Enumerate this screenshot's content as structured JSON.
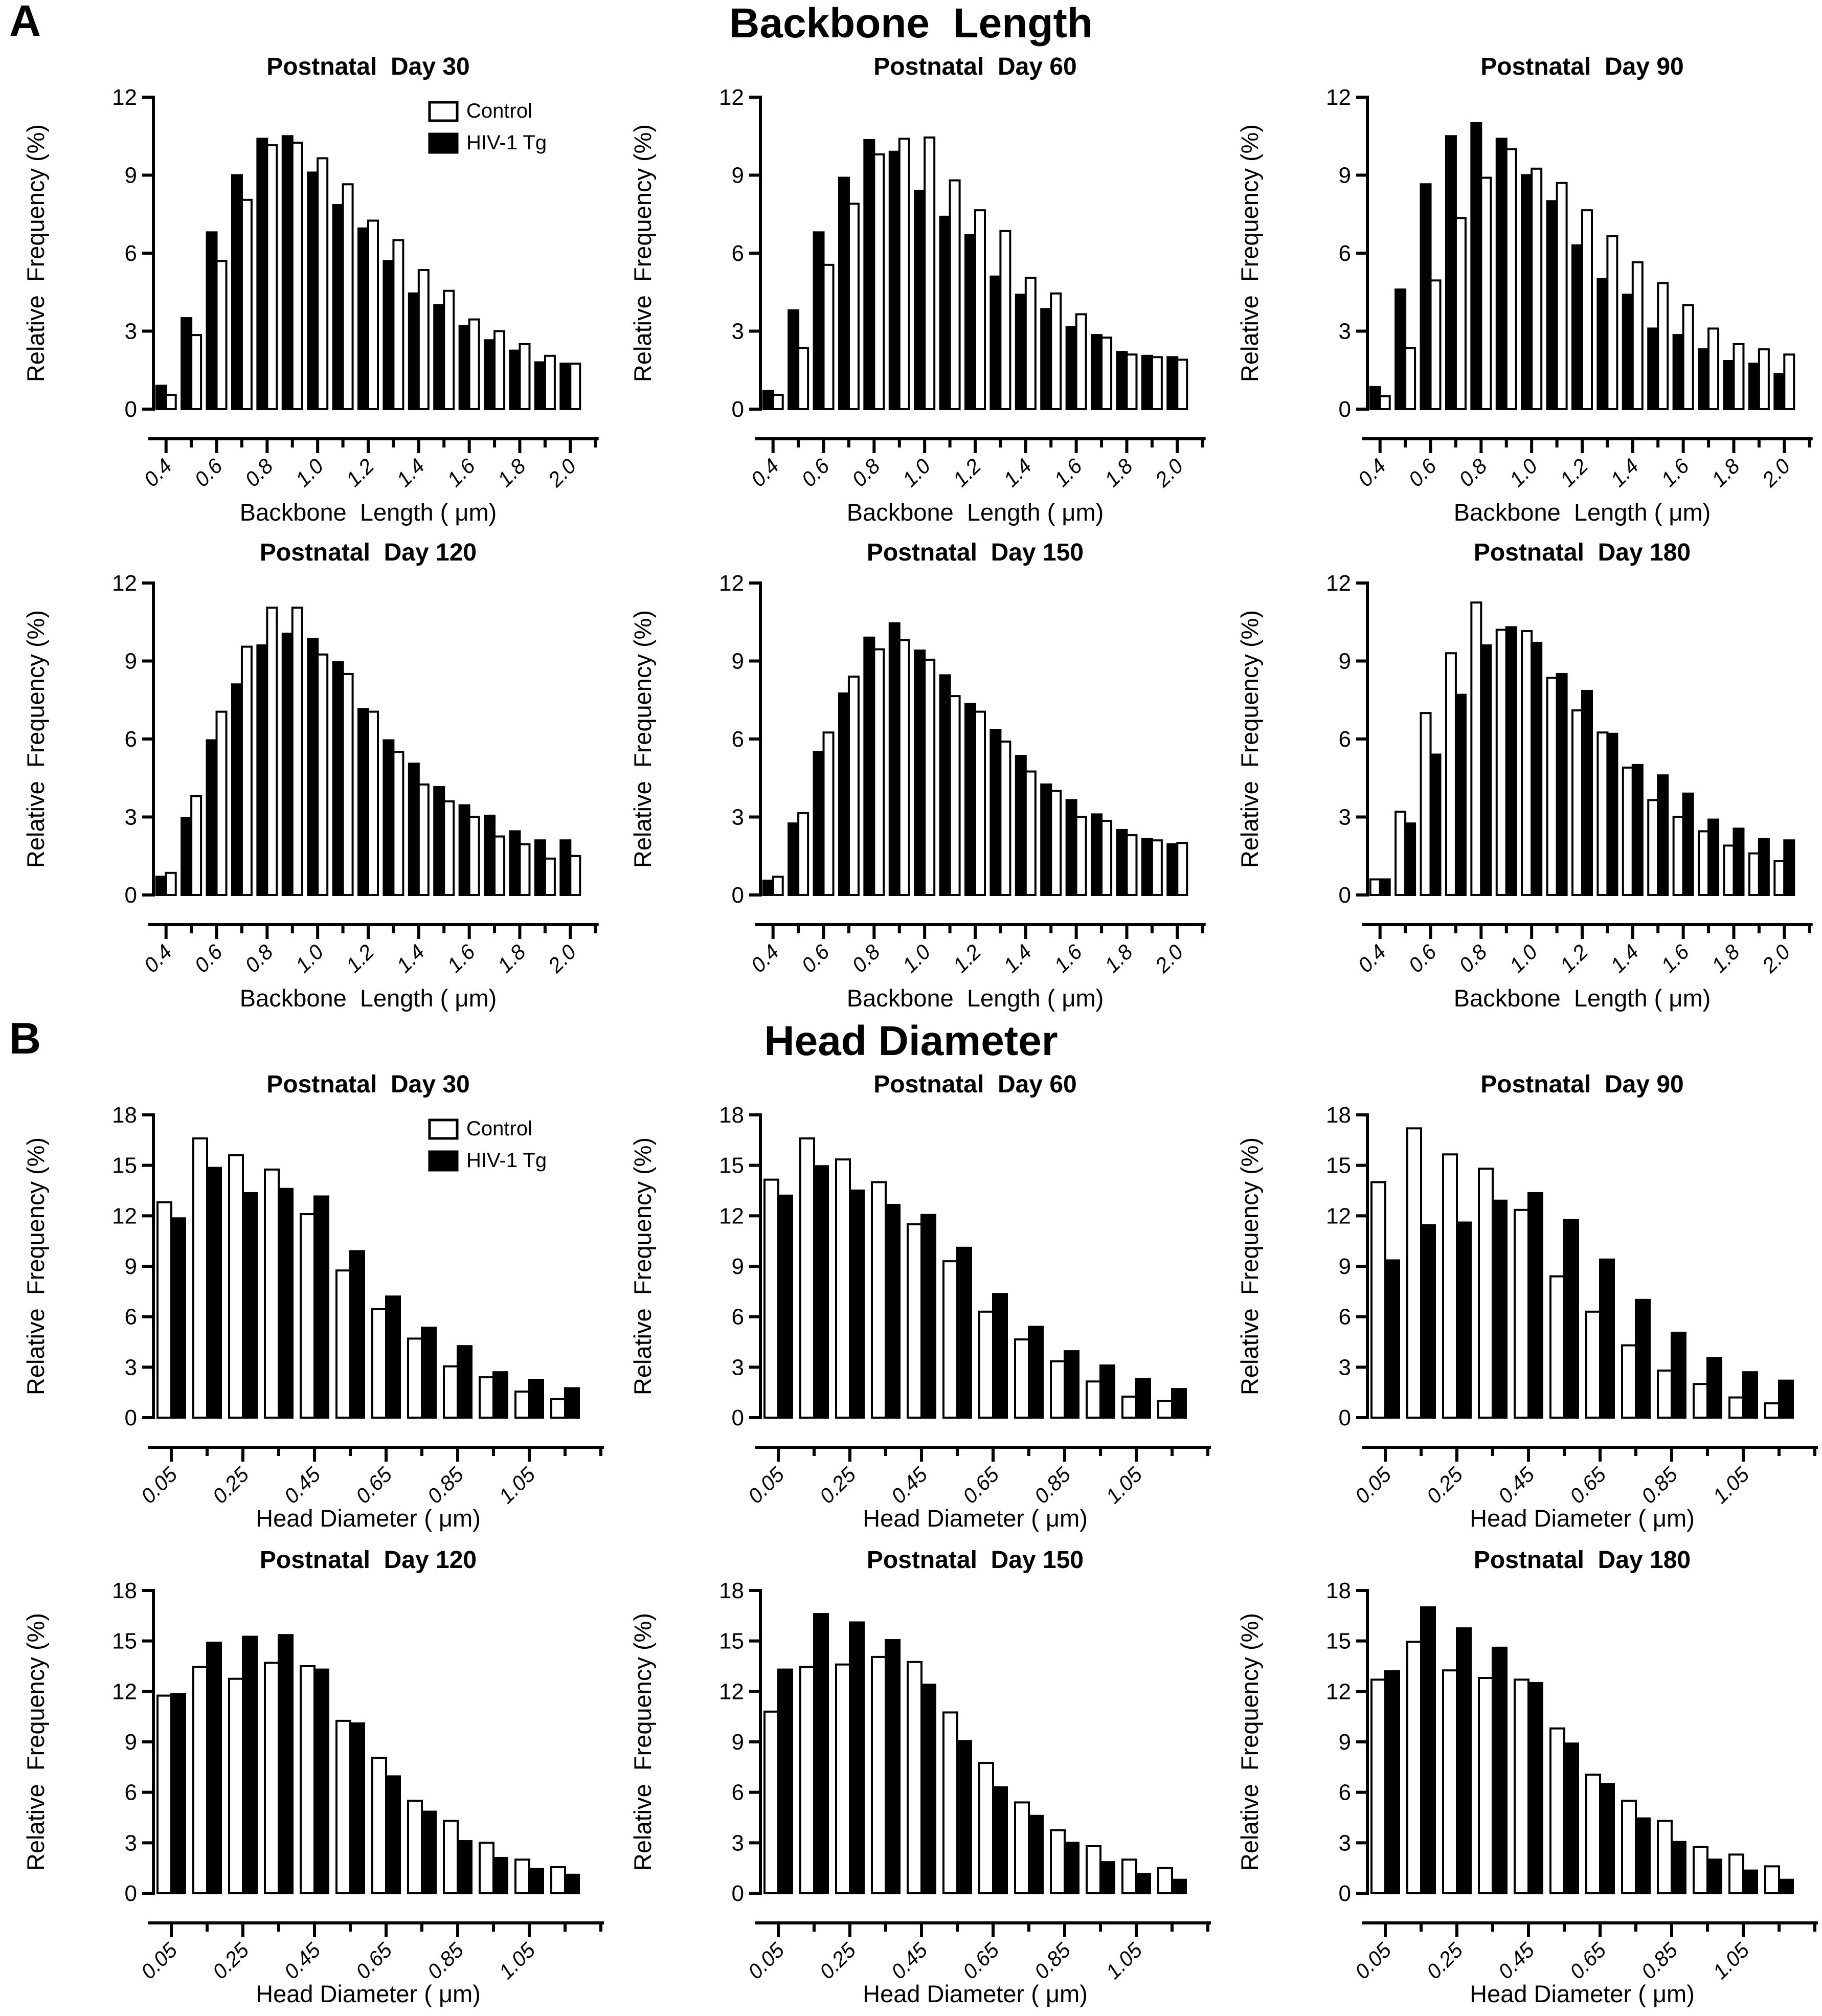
{
  "chart_data": {
    "figure_kind": "paired-bar-histogram-figure",
    "panels": [
      {
        "type": "bar",
        "label": "A",
        "title": "Backbone  Length",
        "ylabel": "Relative  Frequency (%)",
        "xlabel": "Backbone  Length ( μm)",
        "ylim": [
          0,
          12
        ],
        "yticks": [
          0,
          3,
          6,
          9,
          12
        ],
        "bins": {
          "start": 0.4,
          "step": 0.1,
          "count": 17
        },
        "xtick_labels": [
          "0.4",
          "0.6",
          "0.8",
          "1.0",
          "1.2",
          "1.4",
          "1.6",
          "1.8",
          "2.0"
        ],
        "legend": {
          "items": [
            {
              "label": "Control",
              "fill": "#ffffff"
            },
            {
              "label": "HIV-1 Tg",
              "fill": "#000000"
            }
          ]
        },
        "subplots": [
          {
            "title": "Postnatal  Day 30",
            "show_legend": true,
            "series": [
              {
                "name": "HIV-1 Tg",
                "fill": "#000000",
                "values": [
                  0.9,
                  3.5,
                  6.8,
                  9.0,
                  10.4,
                  10.5,
                  9.1,
                  7.85,
                  6.95,
                  5.7,
                  4.45,
                  4.0,
                  3.2,
                  2.65,
                  2.25,
                  1.8,
                  1.75
                ]
              },
              {
                "name": "Control",
                "fill": "#ffffff",
                "values": [
                  0.55,
                  2.85,
                  5.7,
                  8.05,
                  10.15,
                  10.25,
                  9.65,
                  8.65,
                  7.25,
                  6.5,
                  5.35,
                  4.55,
                  3.45,
                  3.0,
                  2.5,
                  2.05,
                  1.75
                ]
              }
            ]
          },
          {
            "title": "Postnatal  Day 60",
            "show_legend": false,
            "series": [
              {
                "name": "HIV-1 Tg",
                "fill": "#000000",
                "values": [
                  0.7,
                  3.8,
                  6.8,
                  8.9,
                  10.35,
                  9.9,
                  8.4,
                  7.4,
                  6.7,
                  5.1,
                  4.4,
                  3.85,
                  3.15,
                  2.85,
                  2.2,
                  2.05,
                  2.0
                ]
              },
              {
                "name": "Control",
                "fill": "#ffffff",
                "values": [
                  0.55,
                  2.35,
                  5.55,
                  7.9,
                  9.8,
                  10.4,
                  10.45,
                  8.8,
                  7.65,
                  6.85,
                  5.05,
                  4.45,
                  3.65,
                  2.75,
                  2.1,
                  2.0,
                  1.9
                ]
              }
            ]
          },
          {
            "title": "Postnatal  Day 90",
            "show_legend": false,
            "series": [
              {
                "name": "HIV-1 Tg",
                "fill": "#000000",
                "values": [
                  0.85,
                  4.6,
                  8.65,
                  10.5,
                  11.0,
                  10.4,
                  9.0,
                  8.0,
                  6.3,
                  5.0,
                  4.4,
                  3.1,
                  2.85,
                  2.3,
                  1.85,
                  1.75,
                  1.35
                ]
              },
              {
                "name": "Control",
                "fill": "#ffffff",
                "values": [
                  0.5,
                  2.35,
                  4.95,
                  7.35,
                  8.9,
                  10.0,
                  9.25,
                  8.7,
                  7.65,
                  6.65,
                  5.65,
                  4.85,
                  4.0,
                  3.1,
                  2.5,
                  2.3,
                  2.1
                ]
              }
            ]
          },
          {
            "title": "Postnatal  Day 120",
            "show_legend": false,
            "series": [
              {
                "name": "HIV-1 Tg",
                "fill": "#000000",
                "values": [
                  0.7,
                  2.95,
                  5.95,
                  8.1,
                  9.6,
                  10.05,
                  9.85,
                  8.95,
                  7.15,
                  5.95,
                  5.05,
                  4.15,
                  3.45,
                  3.05,
                  2.45,
                  2.1,
                  2.1
                ]
              },
              {
                "name": "Control",
                "fill": "#ffffff",
                "values": [
                  0.85,
                  3.8,
                  7.05,
                  9.55,
                  11.05,
                  11.05,
                  9.25,
                  8.5,
                  7.05,
                  5.5,
                  4.25,
                  3.6,
                  3.0,
                  2.25,
                  1.95,
                  1.4,
                  1.5
                ]
              }
            ]
          },
          {
            "title": "Postnatal  Day 150",
            "show_legend": false,
            "series": [
              {
                "name": "HIV-1 Tg",
                "fill": "#000000",
                "values": [
                  0.55,
                  2.75,
                  5.5,
                  7.75,
                  9.9,
                  10.45,
                  9.4,
                  8.45,
                  7.35,
                  6.35,
                  5.35,
                  4.25,
                  3.65,
                  3.1,
                  2.5,
                  2.15,
                  1.95
                ]
              },
              {
                "name": "Control",
                "fill": "#ffffff",
                "values": [
                  0.7,
                  3.15,
                  6.25,
                  8.4,
                  9.45,
                  9.8,
                  9.05,
                  7.65,
                  7.05,
                  5.9,
                  4.75,
                  4.0,
                  3.0,
                  2.85,
                  2.3,
                  2.1,
                  2.0
                ]
              }
            ]
          },
          {
            "title": "Postnatal  Day 180",
            "show_legend": false,
            "series": [
              {
                "name": "Control",
                "fill": "#ffffff",
                "values": [
                  0.6,
                  3.2,
                  7.0,
                  9.3,
                  11.25,
                  10.2,
                  10.15,
                  8.35,
                  7.1,
                  6.25,
                  4.9,
                  3.65,
                  3.0,
                  2.45,
                  1.9,
                  1.6,
                  1.3
                ]
              },
              {
                "name": "HIV-1 Tg",
                "fill": "#000000",
                "values": [
                  0.6,
                  2.75,
                  5.4,
                  7.7,
                  9.6,
                  10.3,
                  9.7,
                  8.5,
                  7.85,
                  6.2,
                  5.0,
                  4.6,
                  3.9,
                  2.9,
                  2.55,
                  2.15,
                  2.1
                ]
              }
            ]
          }
        ]
      },
      {
        "type": "bar",
        "label": "B",
        "title": "Head Diameter",
        "ylabel": "Relative  Frequency (%)",
        "xlabel": "Head Diameter ( μm)",
        "ylim": [
          0,
          18
        ],
        "yticks": [
          0,
          3,
          6,
          9,
          12,
          15,
          18
        ],
        "bins": {
          "start": 0.05,
          "step": 0.1,
          "count": 12
        },
        "xtick_labels": [
          "0.05",
          "0.25",
          "0.45",
          "0.65",
          "0.85",
          "1.05"
        ],
        "legend": {
          "items": [
            {
              "label": "Control",
              "fill": "#ffffff"
            },
            {
              "label": "HIV-1 Tg",
              "fill": "#000000"
            }
          ]
        },
        "subplots": [
          {
            "title": "Postnatal  Day 30",
            "show_legend": true,
            "series": [
              {
                "name": "Control",
                "fill": "#ffffff",
                "values": [
                  12.8,
                  16.6,
                  15.6,
                  14.75,
                  12.1,
                  8.75,
                  6.45,
                  4.7,
                  3.05,
                  2.4,
                  1.55,
                  1.1
                ]
              },
              {
                "name": "HIV-1 Tg",
                "fill": "#000000",
                "values": [
                  11.85,
                  14.85,
                  13.35,
                  13.6,
                  13.15,
                  9.9,
                  7.2,
                  5.35,
                  4.25,
                  2.7,
                  2.25,
                  1.75
                ]
              }
            ]
          },
          {
            "title": "Postnatal  Day 60",
            "show_legend": false,
            "series": [
              {
                "name": "Control",
                "fill": "#ffffff",
                "values": [
                  14.15,
                  16.6,
                  15.35,
                  14.0,
                  11.5,
                  9.3,
                  6.3,
                  4.65,
                  3.35,
                  2.15,
                  1.25,
                  1.0
                ]
              },
              {
                "name": "HIV-1 Tg",
                "fill": "#000000",
                "values": [
                  13.2,
                  14.95,
                  13.5,
                  12.65,
                  12.05,
                  10.1,
                  7.35,
                  5.4,
                  3.95,
                  3.1,
                  2.3,
                  1.7
                ]
              }
            ]
          },
          {
            "title": "Postnatal  Day 90",
            "show_legend": false,
            "series": [
              {
                "name": "Control",
                "fill": "#ffffff",
                "values": [
                  14.0,
                  17.2,
                  15.65,
                  14.8,
                  12.35,
                  8.4,
                  6.3,
                  4.3,
                  2.8,
                  2.0,
                  1.2,
                  0.85
                ]
              },
              {
                "name": "HIV-1 Tg",
                "fill": "#000000",
                "values": [
                  9.35,
                  11.45,
                  11.6,
                  12.9,
                  13.35,
                  11.75,
                  9.4,
                  7.0,
                  5.05,
                  3.55,
                  2.7,
                  2.2
                ]
              }
            ]
          },
          {
            "title": "Postnatal  Day 120",
            "show_legend": false,
            "series": [
              {
                "name": "Control",
                "fill": "#ffffff",
                "values": [
                  11.75,
                  13.45,
                  12.75,
                  13.7,
                  13.5,
                  10.25,
                  8.05,
                  5.5,
                  4.3,
                  3.0,
                  2.0,
                  1.55
                ]
              },
              {
                "name": "HIV-1 Tg",
                "fill": "#000000",
                "values": [
                  11.85,
                  14.9,
                  15.25,
                  15.35,
                  13.3,
                  10.1,
                  6.95,
                  4.85,
                  3.1,
                  2.1,
                  1.45,
                  1.1
                ]
              }
            ]
          },
          {
            "title": "Postnatal  Day 150",
            "show_legend": false,
            "series": [
              {
                "name": "Control",
                "fill": "#ffffff",
                "values": [
                  10.8,
                  13.45,
                  13.6,
                  14.05,
                  13.75,
                  10.75,
                  7.75,
                  5.4,
                  3.75,
                  2.8,
                  2.0,
                  1.5
                ]
              },
              {
                "name": "HIV-1 Tg",
                "fill": "#000000",
                "values": [
                  13.3,
                  16.6,
                  16.1,
                  15.05,
                  12.4,
                  9.05,
                  6.3,
                  4.6,
                  3.0,
                  1.85,
                  1.15,
                  0.8
                ]
              }
            ]
          },
          {
            "title": "Postnatal  Day 180",
            "show_legend": false,
            "series": [
              {
                "name": "Control",
                "fill": "#ffffff",
                "values": [
                  12.7,
                  14.95,
                  13.25,
                  12.8,
                  12.7,
                  9.8,
                  7.05,
                  5.5,
                  4.3,
                  2.75,
                  2.3,
                  1.6
                ]
              },
              {
                "name": "HIV-1 Tg",
                "fill": "#000000",
                "values": [
                  13.2,
                  17.0,
                  15.75,
                  14.6,
                  12.5,
                  8.9,
                  6.5,
                  4.45,
                  3.05,
                  2.0,
                  1.35,
                  0.8
                ]
              }
            ]
          }
        ]
      }
    ]
  },
  "colors": {
    "ink": "#000000",
    "background": "#ffffff"
  }
}
